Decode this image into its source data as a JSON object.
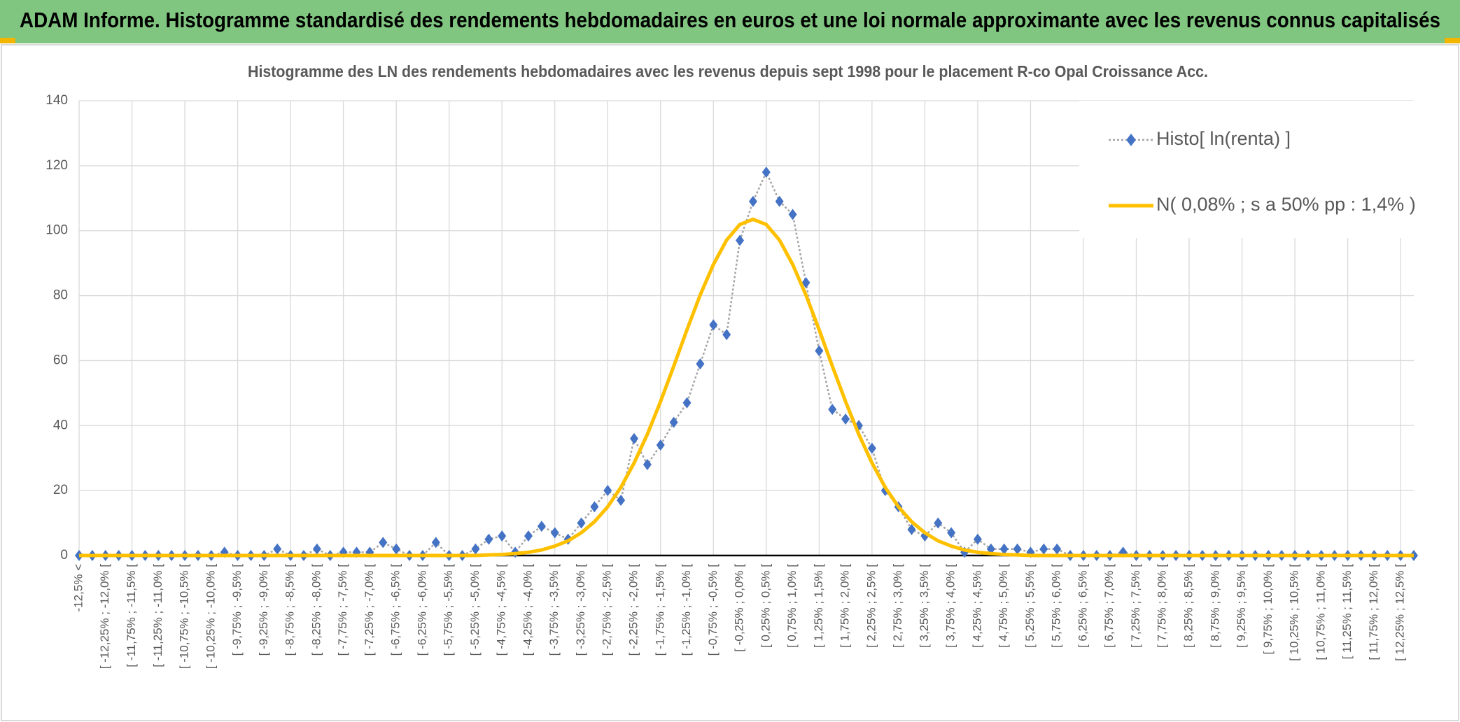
{
  "header": {
    "title": "ADAM Informe. Histogramme standardisé des rendements hebdomadaires en euros et une loi normale approximante avec les revenus connus capitalisés"
  },
  "chart_data": {
    "type": "line",
    "title": "Histogramme des LN des rendements hebdomadaires avec les revenus depuis sept 1998 pour le placement R-co Opal Croissance Acc.",
    "categories": [
      "-12,5% <",
      null,
      "[ -12,25% ; -12,0% [",
      null,
      "[ -11,75% ; -11,5% [",
      null,
      "[ -11,25% ; -11,0% [",
      null,
      "[ -10,75% ; -10,5% [",
      null,
      "[ -10,25% ; -10,0% [",
      null,
      "[ -9,75% ; -9,5% [",
      null,
      "[ -9,25% ; -9,0% [",
      null,
      "[ -8,75% ; -8,5% [",
      null,
      "[ -8,25% ; -8,0% [",
      null,
      "[ -7,75% ; -7,5% [",
      null,
      "[ -7,25% ; -7,0% [",
      null,
      "[ -6,75% ; -6,5% [",
      null,
      "[ -6,25% ; -6,0% [",
      null,
      "[ -5,75% ; -5,5% [",
      null,
      "[ -5,25% ; -5,0% [",
      null,
      "[ -4,75% ; -4,5% [",
      null,
      "[ -4,25% ; -4,0% [",
      null,
      "[ -3,75% ; -3,5% [",
      null,
      "[ -3,25% ; -3,0% [",
      null,
      "[ -2,75% ; -2,5% [",
      null,
      "[ -2,25% ; -2,0% [",
      null,
      "[ -1,75% ; -1,5% [",
      null,
      "[ -1,25% ; -1,0% [",
      null,
      "[ -0,75% ; -0,5% [",
      null,
      "[ -0,25% ; 0,0% [",
      null,
      "[ 0,25% ; 0,5% [",
      null,
      "[ 0,75% ; 1,0% [",
      null,
      "[ 1,25% ; 1,5% [",
      null,
      "[ 1,75% ; 2,0% [",
      null,
      "[ 2,25% ; 2,5% [",
      null,
      "[ 2,75% ; 3,0% [",
      null,
      "[ 3,25% ; 3,5% [",
      null,
      "[ 3,75% ; 4,0% [",
      null,
      "[ 4,25% ; 4,5% [",
      null,
      "[ 4,75% ; 5,0% [",
      null,
      "[ 5,25% ; 5,5% [",
      null,
      "[ 5,75% ; 6,0% [",
      null,
      "[ 6,25% ; 6,5% [",
      null,
      "[ 6,75% ; 7,0% [",
      null,
      "[ 7,25% ; 7,5% [",
      null,
      "[ 7,75% ; 8,0% [",
      null,
      "[ 8,25% ; 8,5% [",
      null,
      "[ 8,75% ; 9,0% [",
      null,
      "[ 9,25% ; 9,5% [",
      null,
      "[ 9,75% ; 10,0% [",
      null,
      "[ 10,25% ; 10,5% [",
      null,
      "[ 10,75% ; 11,0% [",
      null,
      "[ 11,25% ; 11,5% [",
      null,
      "[ 11,75% ; 12,0% [",
      null,
      "[ 12,25% ; 12,5% [",
      null
    ],
    "series": [
      {
        "name": "Histo[ ln(renta) ]",
        "color": "#4472c4",
        "line_color": "#a5a5a5",
        "values": [
          0,
          0,
          0,
          0,
          0,
          0,
          0,
          0,
          0,
          0,
          0,
          1,
          0,
          0,
          0,
          2,
          0,
          0,
          2,
          0,
          1,
          1,
          1,
          4,
          2,
          0,
          0,
          4,
          0,
          0,
          2,
          5,
          6,
          1,
          6,
          9,
          7,
          5,
          10,
          15,
          20,
          17,
          36,
          28,
          34,
          41,
          47,
          59,
          71,
          68,
          97,
          109,
          118,
          109,
          105,
          84,
          63,
          45,
          42,
          40,
          33,
          20,
          15,
          8,
          6,
          10,
          7,
          1,
          5,
          2,
          2,
          2,
          1,
          2,
          2,
          0,
          0,
          0,
          0,
          1,
          0,
          0,
          0,
          0,
          0,
          0,
          0,
          0,
          0,
          0,
          0,
          0,
          0,
          0,
          0,
          0,
          0,
          0,
          0,
          0,
          0,
          0
        ]
      },
      {
        "name": "N( 0,08% ; s a 50% pp : 1,4% )",
        "color": "#ffc000",
        "values": [
          0,
          0,
          0,
          0,
          0,
          0,
          0,
          0,
          0,
          0,
          0,
          0,
          0,
          0,
          0,
          0,
          0,
          0,
          0,
          0,
          0,
          0,
          0,
          0,
          0,
          0,
          0,
          0,
          0,
          0,
          0,
          0.2,
          0.3,
          0.6,
          1.0,
          1.7,
          2.9,
          4.5,
          7.0,
          10.4,
          15.0,
          21.0,
          28.5,
          37.3,
          47.4,
          58.3,
          69.5,
          80.2,
          89.6,
          97.1,
          101.9,
          103.5,
          101.9,
          97.1,
          89.6,
          80.2,
          69.5,
          58.3,
          47.4,
          37.3,
          28.5,
          21.0,
          15.0,
          10.4,
          7.0,
          4.5,
          2.9,
          1.7,
          1.0,
          0.6,
          0.3,
          0.2,
          0,
          0,
          0,
          0,
          0,
          0,
          0,
          0,
          0,
          0,
          0,
          0,
          0,
          0,
          0,
          0,
          0,
          0,
          0,
          0,
          0,
          0,
          0,
          0,
          0,
          0,
          0,
          0,
          0,
          0
        ]
      }
    ],
    "ylim": [
      0,
      140
    ],
    "yticks": [
      0,
      20,
      40,
      60,
      80,
      100,
      120,
      140
    ],
    "grid": true,
    "legend": "top-right"
  }
}
